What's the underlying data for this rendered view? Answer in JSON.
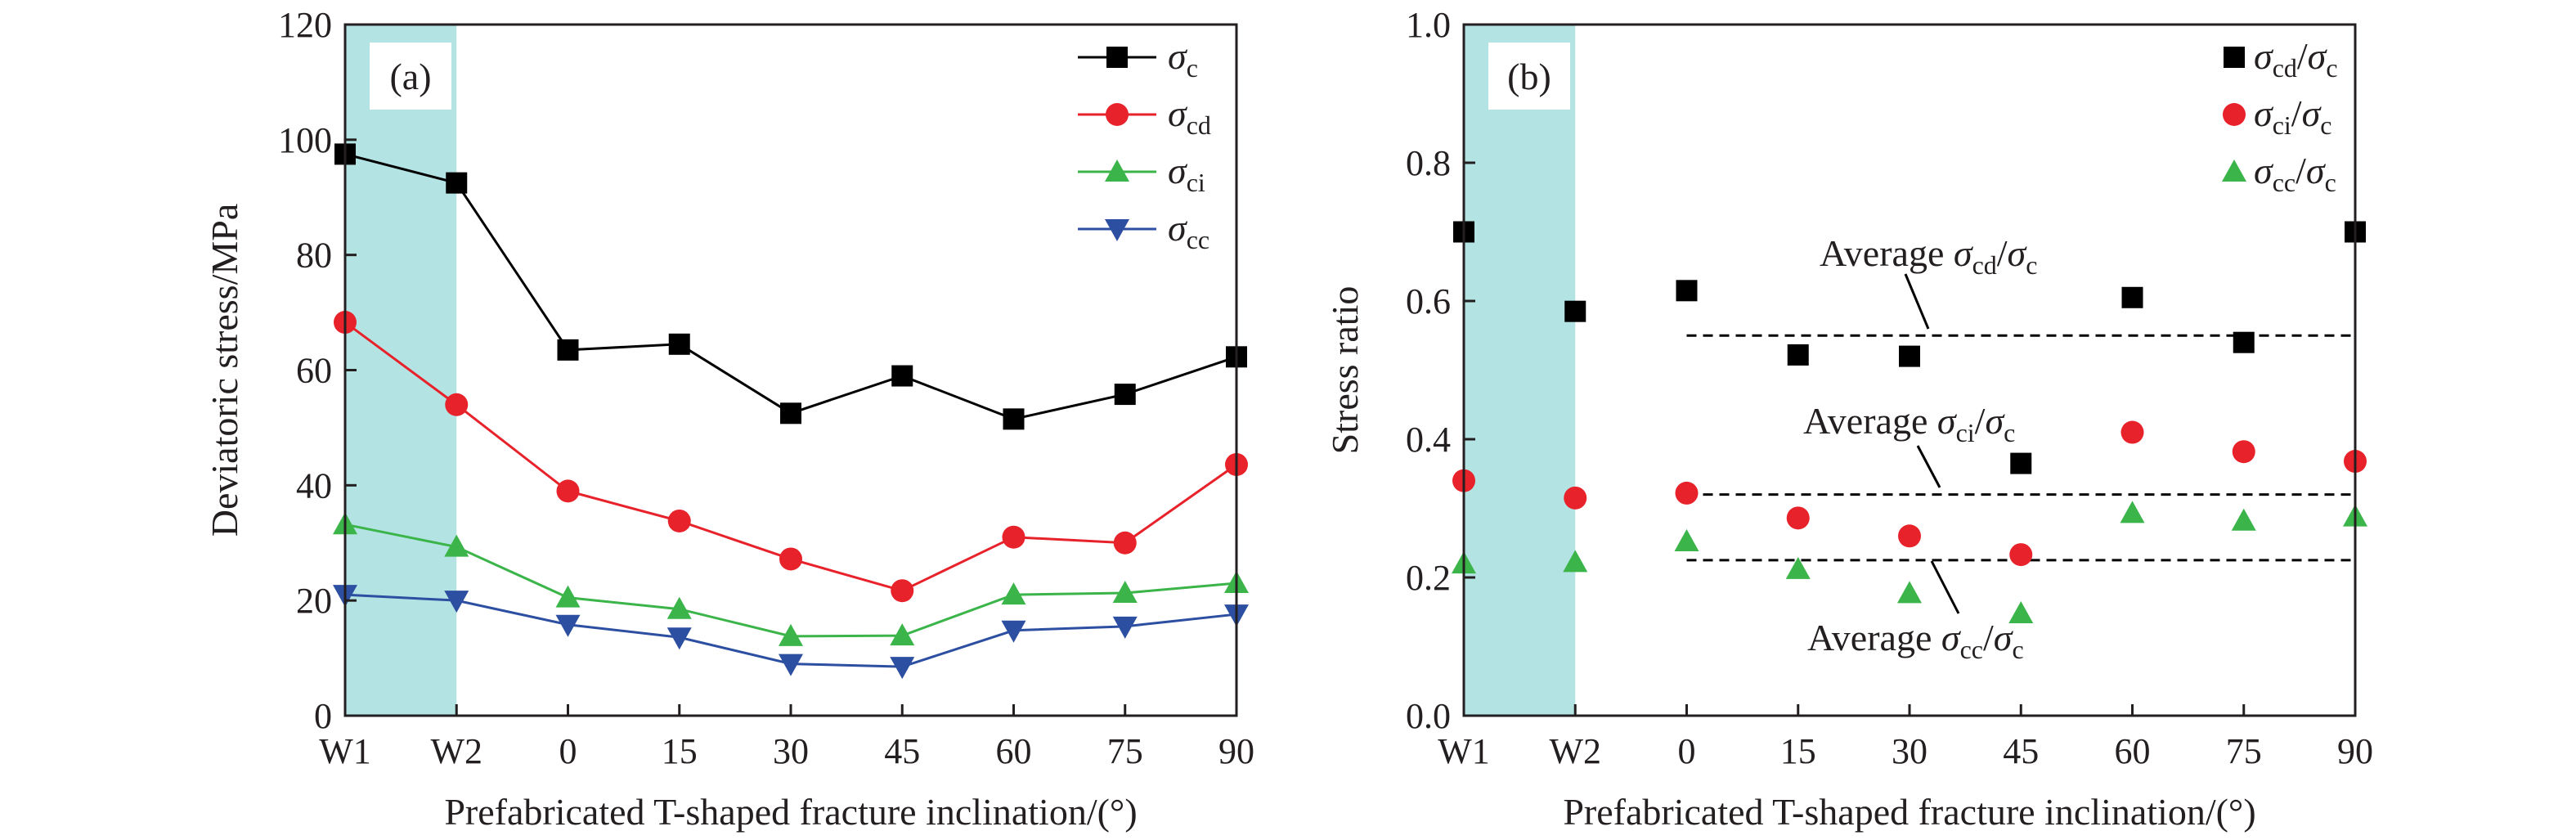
{
  "colors": {
    "shade": "#b3e3e3",
    "axis": "#231f20",
    "sigma_c": "#000000",
    "sigma_cd": "#e8222a",
    "sigma_ci": "#3bb54a",
    "sigma_cc": "#2d4fa1"
  },
  "chart_data": [
    {
      "type": "line",
      "panel": "(a)",
      "xlabel": "Prefabricated T-shaped fracture inclination/(°)",
      "ylabel": "Deviatoric stress/MPa",
      "categories": [
        "W1",
        "W2",
        "0",
        "15",
        "30",
        "45",
        "60",
        "75",
        "90"
      ],
      "ylim": [
        0,
        120
      ],
      "yticks": [
        "0",
        "20",
        "40",
        "60",
        "80",
        "100",
        "120"
      ],
      "shaded_categories": [
        "W1",
        "W2"
      ],
      "legend_position": "top-right",
      "grid": false,
      "series": [
        {
          "name": "σc",
          "sym": "σ",
          "sub": "c",
          "marker": "square",
          "color_key": "sigma_c",
          "values": [
            97.5,
            92.5,
            63.5,
            64.5,
            52.5,
            59.0,
            51.5,
            55.8,
            62.3
          ]
        },
        {
          "name": "σcd",
          "sym": "σ",
          "sub": "cd",
          "marker": "circle",
          "color_key": "sigma_cd",
          "values": [
            68.3,
            54.0,
            39.0,
            33.8,
            27.2,
            21.7,
            31.0,
            30.0,
            43.6
          ]
        },
        {
          "name": "σci",
          "sym": "σ",
          "sub": "ci",
          "marker": "triangle-up",
          "color_key": "sigma_ci",
          "values": [
            33.2,
            29.3,
            20.5,
            18.5,
            13.8,
            13.9,
            21.0,
            21.3,
            23.0
          ]
        },
        {
          "name": "σcc",
          "sym": "σ",
          "sub": "cc",
          "marker": "triangle-down",
          "color_key": "sigma_cc",
          "values": [
            21.0,
            20.0,
            15.8,
            13.6,
            9.0,
            8.5,
            14.8,
            15.5,
            17.6
          ]
        }
      ]
    },
    {
      "type": "scatter",
      "panel": "(b)",
      "xlabel": "Prefabricated T-shaped fracture inclination/(°)",
      "ylabel": "Stress ratio",
      "categories": [
        "W1",
        "W2",
        "0",
        "15",
        "30",
        "45",
        "60",
        "75",
        "90"
      ],
      "ylim": [
        0,
        1.0
      ],
      "yticks": [
        "0.0",
        "0.2",
        "0.4",
        "0.6",
        "0.8",
        "1.0"
      ],
      "shaded_categories": [
        "W1",
        "W2"
      ],
      "legend_position": "top-right",
      "grid": false,
      "series": [
        {
          "name": "σcd/σc",
          "sym": "σ",
          "sub": "cd",
          "marker": "square",
          "color_key": "sigma_c",
          "values": [
            0.7,
            0.585,
            0.615,
            0.522,
            0.52,
            0.365,
            0.605,
            0.54,
            0.7
          ]
        },
        {
          "name": "σci/σc",
          "sym": "σ",
          "sub": "ci",
          "marker": "circle",
          "color_key": "sigma_cd",
          "values": [
            0.34,
            0.315,
            0.322,
            0.286,
            0.26,
            0.233,
            0.41,
            0.382,
            0.368
          ]
        },
        {
          "name": "σcc/σc",
          "sym": "σ",
          "sub": "cc",
          "marker": "triangle-up",
          "color_key": "sigma_ci",
          "values": [
            0.22,
            0.222,
            0.252,
            0.212,
            0.177,
            0.148,
            0.293,
            0.282,
            0.288
          ]
        }
      ],
      "reference_lines": [
        {
          "label": "Average σcd/σc",
          "sub": "cd",
          "y": 0.55,
          "x_start": "0"
        },
        {
          "label": "Average σci/σc",
          "sub": "ci",
          "y": 0.32,
          "x_start": "0"
        },
        {
          "label": "Average σcc/σc",
          "sub": "cc",
          "y": 0.225,
          "x_start": "0"
        }
      ]
    }
  ]
}
